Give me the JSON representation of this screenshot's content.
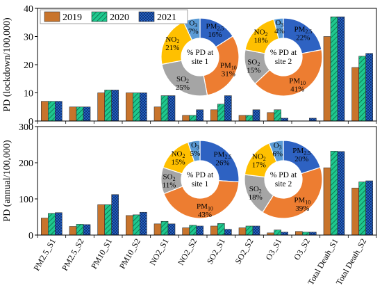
{
  "chart_data": [
    {
      "type": "bar",
      "ylabel": "PD (lockdown/100,000)",
      "ylim": [
        0,
        40
      ],
      "yticks": [
        0,
        10,
        20,
        30,
        40
      ],
      "legend_placement": "top-left",
      "categories": [
        "PM2.5_S1",
        "PM2.5_S2",
        "PM10_S1",
        "PM10_S2",
        "NO2_S1",
        "NO2_S2",
        "SO2_S1",
        "SO2_S2",
        "O3_S1",
        "O3_S2",
        "Total Death_S1",
        "Total Death_S2"
      ],
      "series": [
        {
          "name": "2019",
          "color": "#c8742c",
          "pattern": "solid",
          "values": [
            7,
            5,
            10,
            10,
            5,
            2,
            4,
            2,
            3,
            0,
            30,
            19
          ]
        },
        {
          "name": "2020",
          "color": "#1ec88e",
          "pattern": "diagonal-lines",
          "values": [
            7,
            5,
            11,
            10,
            9,
            2,
            6,
            2,
            4,
            0,
            37,
            23
          ]
        },
        {
          "name": "2021",
          "color": "#2b6fd6",
          "pattern": "crosshatch",
          "values": [
            7,
            5,
            11,
            10,
            9,
            4,
            9,
            4,
            1,
            1,
            37,
            24
          ]
        }
      ],
      "pies": [
        {
          "label_lines": [
            "% PD at",
            "site 1"
          ],
          "slices": [
            {
              "label": "PM2.5",
              "value": 16,
              "color": "#2e62c2"
            },
            {
              "label": "PM10",
              "value": 31,
              "color": "#ed7d31"
            },
            {
              "label": "SO2",
              "value": 25,
              "color": "#a5a5a5"
            },
            {
              "label": "NO2",
              "value": 21,
              "color": "#ffc000"
            },
            {
              "label": "O3",
              "value": 7,
              "color": "#5b9bd5"
            }
          ]
        },
        {
          "label_lines": [
            "% PD at",
            "site 2"
          ],
          "slices": [
            {
              "label": "PM2.5",
              "value": 22,
              "color": "#2e62c2"
            },
            {
              "label": "PM10",
              "value": 41,
              "color": "#ed7d31"
            },
            {
              "label": "SO2",
              "value": 15,
              "color": "#a5a5a5"
            },
            {
              "label": "NO2",
              "value": 18,
              "color": "#ffc000"
            },
            {
              "label": "O3",
              "value": 4,
              "color": "#5b9bd5"
            }
          ]
        }
      ]
    },
    {
      "type": "bar",
      "ylabel": "PD (annual/100,000)",
      "ylim": [
        0,
        300
      ],
      "yticks": [
        0,
        100,
        200,
        300
      ],
      "categories": [
        "PM2.5_S1",
        "PM2.5_S2",
        "PM10_S1",
        "PM10_S2",
        "NO2_S1",
        "NO2_S2",
        "SO2_S1",
        "SO2_S2",
        "O3_S1",
        "O3_S2",
        "Total Death_S1",
        "Total Death_S2"
      ],
      "series": [
        {
          "name": "2019",
          "color": "#c8742c",
          "pattern": "solid",
          "values": [
            47,
            24,
            84,
            54,
            31,
            20,
            25,
            20,
            6,
            10,
            186,
            130
          ]
        },
        {
          "name": "2020",
          "color": "#1ec88e",
          "pattern": "diagonal-lines",
          "values": [
            60,
            30,
            84,
            56,
            38,
            27,
            32,
            25,
            14,
            8,
            232,
            147
          ]
        },
        {
          "name": "2021",
          "color": "#2b6fd6",
          "pattern": "crosshatch",
          "values": [
            62,
            29,
            112,
            63,
            31,
            25,
            16,
            25,
            8,
            8,
            231,
            150
          ]
        }
      ],
      "pies": [
        {
          "label_lines": [
            "% PD at",
            "site 1"
          ],
          "slices": [
            {
              "label": "PM2.5",
              "value": 26,
              "color": "#2e62c2"
            },
            {
              "label": "PM10",
              "value": 43,
              "color": "#ed7d31"
            },
            {
              "label": "SO2",
              "value": 11,
              "color": "#a5a5a5"
            },
            {
              "label": "NO2",
              "value": 15,
              "color": "#ffc000"
            },
            {
              "label": "O3",
              "value": 5,
              "color": "#5b9bd5"
            }
          ]
        },
        {
          "label_lines": [
            "% PD at",
            "site 2"
          ],
          "slices": [
            {
              "label": "PM2.5",
              "value": 20,
              "color": "#2e62c2"
            },
            {
              "label": "PM10",
              "value": 39,
              "color": "#ed7d31"
            },
            {
              "label": "SO2",
              "value": 18,
              "color": "#a5a5a5"
            },
            {
              "label": "NO2",
              "value": 17,
              "color": "#ffc000"
            },
            {
              "label": "O3",
              "value": 6,
              "color": "#5b9bd5"
            }
          ]
        }
      ]
    }
  ]
}
